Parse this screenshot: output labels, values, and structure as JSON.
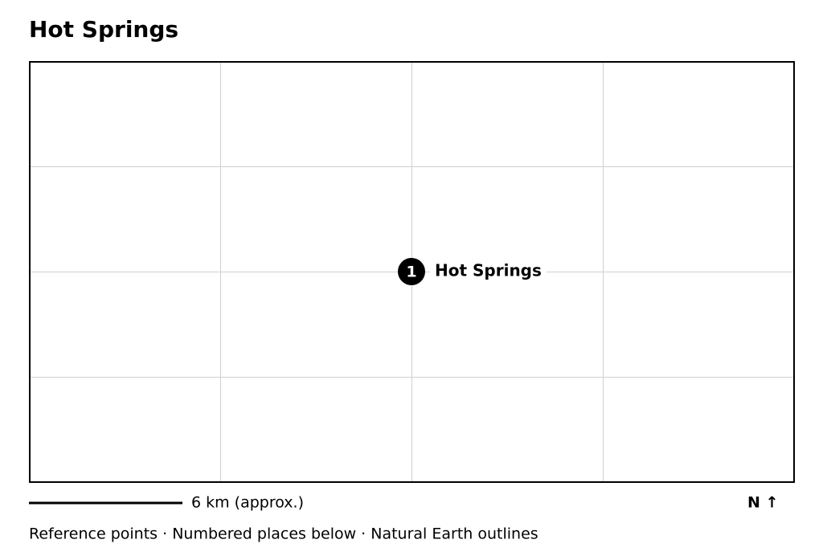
{
  "title": "Hot Springs",
  "places": [
    {
      "number": 1,
      "label": "Hot Springs"
    }
  ],
  "scale_label": "6 km (approx.)",
  "north_label": "N ↑",
  "footer": "Reference points · Numbered places below · Natural Earth outlines"
}
